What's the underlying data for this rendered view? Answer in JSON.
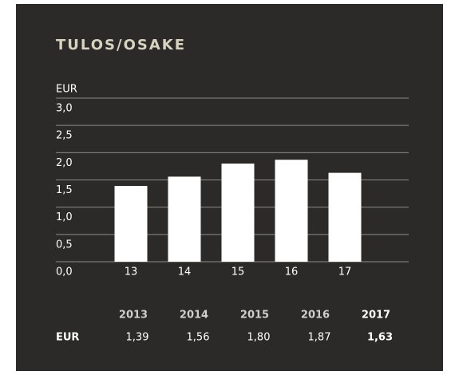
{
  "chart_data": {
    "type": "bar",
    "title": "TULOS/OSAKE",
    "y_label": "EUR",
    "categories": [
      "13",
      "14",
      "15",
      "16",
      "17"
    ],
    "values": [
      1.39,
      1.56,
      1.8,
      1.87,
      1.63
    ],
    "value_labels": [
      "1,39",
      "1,56",
      "1,80",
      "1,87",
      "1,63"
    ],
    "color": "#ffffff",
    "ylim": [
      0,
      3
    ],
    "yticks": [
      {
        "value": 0,
        "label": "0,0"
      },
      {
        "value": 0.5,
        "label": "0,5"
      },
      {
        "value": 1,
        "label": "1,0"
      },
      {
        "value": 1.5,
        "label": "1,5"
      },
      {
        "value": 2,
        "label": "2,0"
      },
      {
        "value": 2.5,
        "label": "2,5"
      },
      {
        "value": 3,
        "label": "3,0"
      }
    ],
    "grid": true
  },
  "table": {
    "row_label": "EUR",
    "columns": [
      "2013",
      "2014",
      "2015",
      "2016",
      "2017"
    ]
  }
}
